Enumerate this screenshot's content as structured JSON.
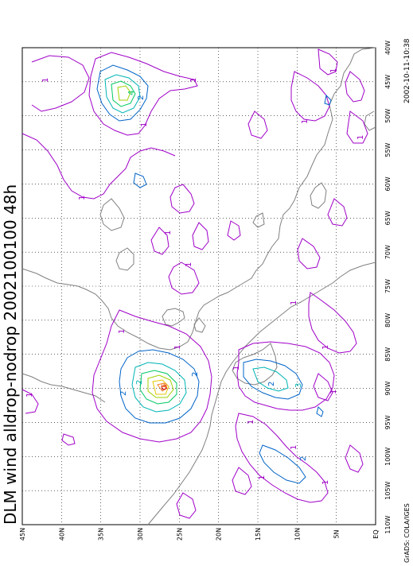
{
  "title": "DLM wind alldrop-nodrop 2002100100 48h",
  "timestamp": "2002-10-11-10:38",
  "credit": "GrADS: COLA/IGES",
  "lon_labels": [
    "110W",
    "105W",
    "100W",
    "95W",
    "90W",
    "85W",
    "80W",
    "75W",
    "70W",
    "65W",
    "60W",
    "55W",
    "50W",
    "45W",
    "40W"
  ],
  "lat_labels": [
    "EQ",
    "5N",
    "10N",
    "15N",
    "20N",
    "25N",
    "30N",
    "35N",
    "40N",
    "45N"
  ],
  "contour_labels": [
    "1",
    "1",
    "1",
    "1",
    "1",
    "1",
    "1",
    "1",
    "1",
    "1",
    "1",
    "1",
    "1",
    "1",
    "1",
    "1",
    "1",
    "1",
    "1",
    "1",
    "2",
    "2",
    "2",
    "2",
    "2",
    "3",
    "6",
    "2",
    "4"
  ],
  "colors": {
    "c1": "#a000c8",
    "c2": "#0064c8",
    "c3": "#00b4b4",
    "c4": "#00c864",
    "c5": "#a0d200",
    "c6": "#e6c800",
    "c7": "#f08228",
    "c8": "#d20000",
    "coast": "#808080",
    "grid": "#000000"
  }
}
